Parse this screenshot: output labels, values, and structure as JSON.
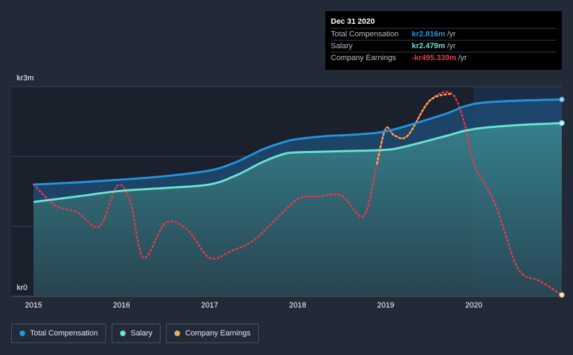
{
  "chart_data": {
    "type": "line",
    "y_labels": [
      "kr3m",
      "kr0"
    ],
    "x_ticks": [
      "2015",
      "2016",
      "2017",
      "2018",
      "2019",
      "2020"
    ],
    "x_tick_values": [
      2015,
      2016,
      2017,
      2018,
      2019,
      2020
    ],
    "xlim": [
      2015,
      2021
    ],
    "ylim": [
      0,
      3.0
    ],
    "highlight_start": 2020,
    "series": [
      {
        "name": "Total Compensation",
        "color": "#2394df",
        "style": "area",
        "x": [
          2015.0,
          2015.5,
          2016.0,
          2016.5,
          2017.0,
          2017.3,
          2017.6,
          2017.85,
          2018.0,
          2018.3,
          2018.6,
          2018.9,
          2019.1,
          2019.4,
          2019.7,
          2019.9,
          2020.1,
          2020.5,
          2021.0
        ],
        "values": [
          1.6,
          1.63,
          1.67,
          1.72,
          1.8,
          1.92,
          2.1,
          2.21,
          2.25,
          2.29,
          2.31,
          2.34,
          2.39,
          2.5,
          2.62,
          2.72,
          2.77,
          2.8,
          2.816
        ]
      },
      {
        "name": "Salary",
        "color": "#6be2d2",
        "style": "area",
        "x": [
          2015.0,
          2015.5,
          2016.0,
          2016.5,
          2017.0,
          2017.3,
          2017.6,
          2017.85,
          2018.0,
          2018.3,
          2018.6,
          2018.9,
          2019.1,
          2019.4,
          2019.7,
          2019.9,
          2020.1,
          2020.5,
          2021.0
        ],
        "values": [
          1.35,
          1.43,
          1.51,
          1.55,
          1.6,
          1.73,
          1.92,
          2.04,
          2.06,
          2.07,
          2.08,
          2.09,
          2.11,
          2.2,
          2.3,
          2.37,
          2.41,
          2.45,
          2.479
        ]
      },
      {
        "name": "Company Earnings",
        "color": "#f0b352",
        "style": "dotted",
        "neg_color": "#e8384f",
        "x": [
          2015.0,
          2015.25,
          2015.5,
          2015.75,
          2015.95,
          2016.1,
          2016.25,
          2016.5,
          2016.75,
          2017.0,
          2017.25,
          2017.5,
          2017.75,
          2018.0,
          2018.25,
          2018.5,
          2018.75,
          2018.9,
          2019.0,
          2019.1,
          2019.25,
          2019.5,
          2019.75,
          2019.9,
          2020.0,
          2020.25,
          2020.5,
          2020.75,
          2021.0
        ],
        "values": [
          1.6,
          1.3,
          1.2,
          1.0,
          1.58,
          1.35,
          0.55,
          1.05,
          0.95,
          0.55,
          0.65,
          0.8,
          1.1,
          1.39,
          1.43,
          1.44,
          1.15,
          1.9,
          2.4,
          2.3,
          2.3,
          2.8,
          2.9,
          2.45,
          1.9,
          1.3,
          0.4,
          0.22,
          0.02
        ],
        "positive_ranges": [
          [
            2018.9,
            2019.87
          ]
        ]
      }
    ],
    "tooltip": {
      "date": "Dec 31 2020",
      "rows": [
        {
          "label": "Total Compensation",
          "value": "kr2.816m",
          "unit": "/yr",
          "color": "#2394df"
        },
        {
          "label": "Salary",
          "value": "kr2.479m",
          "unit": "/yr",
          "color": "#6be2d2"
        },
        {
          "label": "Company Earnings",
          "value": "-kr495.339m",
          "unit": "/yr",
          "color": "#e8384f"
        }
      ]
    }
  },
  "legend": [
    {
      "label": "Total Compensation",
      "color": "#2394df"
    },
    {
      "label": "Salary",
      "color": "#6be2d2"
    },
    {
      "label": "Company Earnings",
      "color": "#f0b352"
    }
  ]
}
